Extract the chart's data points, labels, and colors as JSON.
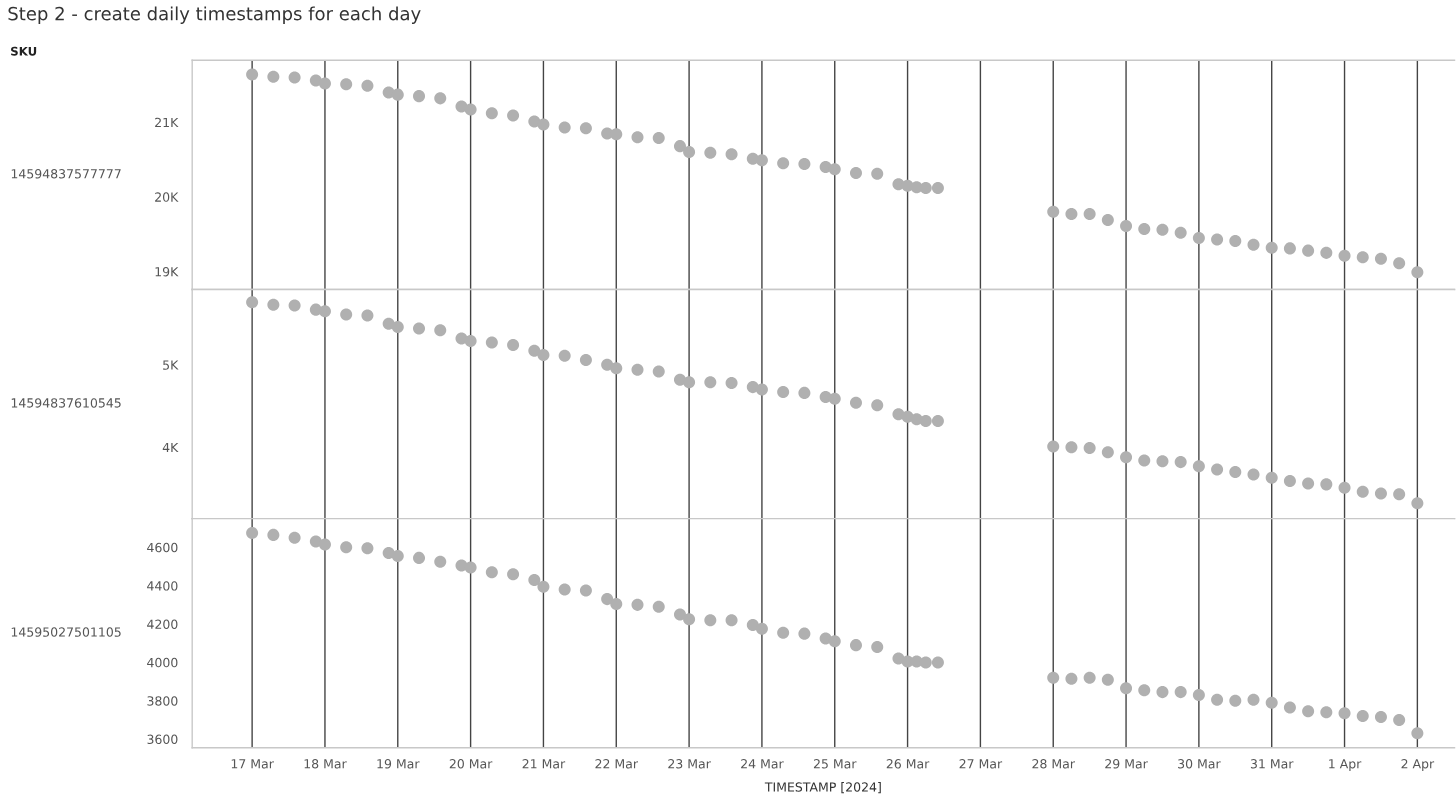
{
  "chart_data": [
    {
      "type": "scatter",
      "title": "Step 2 - create daily timestamps for each day",
      "annotations": [
        "SKU"
      ],
      "ylabel": "14594837577777",
      "marker": "circle",
      "grid": "x",
      "tick_labels": "y",
      "x": [
        "2024-03-17T00:00",
        "2024-03-17T07:00",
        "2024-03-17T14:00",
        "2024-03-17T21:00",
        "2024-03-18T00:00",
        "2024-03-18T07:00",
        "2024-03-18T14:00",
        "2024-03-18T21:00",
        "2024-03-19T00:00",
        "2024-03-19T07:00",
        "2024-03-19T14:00",
        "2024-03-19T21:00",
        "2024-03-20T00:00",
        "2024-03-20T07:00",
        "2024-03-20T14:00",
        "2024-03-20T21:00",
        "2024-03-21T00:00",
        "2024-03-21T07:00",
        "2024-03-21T14:00",
        "2024-03-21T21:00",
        "2024-03-22T00:00",
        "2024-03-22T07:00",
        "2024-03-22T14:00",
        "2024-03-22T21:00",
        "2024-03-23T00:00",
        "2024-03-23T07:00",
        "2024-03-23T14:00",
        "2024-03-23T21:00",
        "2024-03-24T00:00",
        "2024-03-24T07:00",
        "2024-03-24T14:00",
        "2024-03-24T21:00",
        "2024-03-25T00:00",
        "2024-03-25T07:00",
        "2024-03-25T14:00",
        "2024-03-25T21:00",
        "2024-03-26T00:00",
        "2024-03-26T03:00",
        "2024-03-26T06:00",
        "2024-03-26T10:00",
        "2024-03-28T00:00",
        "2024-03-28T06:00",
        "2024-03-28T12:00",
        "2024-03-28T18:00",
        "2024-03-29T00:00",
        "2024-03-29T06:00",
        "2024-03-29T12:00",
        "2024-03-29T18:00",
        "2024-03-30T00:00",
        "2024-03-30T06:00",
        "2024-03-30T12:00",
        "2024-03-30T18:00",
        "2024-03-31T00:00",
        "2024-03-31T06:00",
        "2024-03-31T12:00",
        "2024-03-31T18:00",
        "2024-04-01T00:00",
        "2024-04-01T06:00",
        "2024-04-01T12:00",
        "2024-04-01T18:00",
        "2024-04-02T00:00"
      ],
      "series": [
        {
          "color": "#b0b0b0",
          "values": [
            21640,
            21610,
            21600,
            21560,
            21520,
            21510,
            21490,
            21400,
            21370,
            21350,
            21320,
            21210,
            21170,
            21120,
            21090,
            21010,
            20970,
            20930,
            20920,
            20850,
            20840,
            20800,
            20790,
            20680,
            20600,
            20590,
            20570,
            20510,
            20490,
            20450,
            20440,
            20400,
            20370,
            20320,
            20310,
            20170,
            20150,
            20130,
            20120,
            20120,
            19800,
            19770,
            19770,
            19690,
            19610,
            19570,
            19560,
            19520,
            19450,
            19430,
            19410,
            19360,
            19320,
            19310,
            19280,
            19250,
            19210,
            19190,
            19170,
            19110,
            18990
          ]
        }
      ],
      "xlim": [
        "2024-03-16T04:15",
        "2024-04-02T12:15"
      ],
      "xticks": [
        {
          "value": "2024-03-17",
          "label": null
        },
        {
          "value": "2024-03-18",
          "label": null
        },
        {
          "value": "2024-03-19",
          "label": null
        },
        {
          "value": "2024-03-20",
          "label": null
        },
        {
          "value": "2024-03-21",
          "label": null
        },
        {
          "value": "2024-03-22",
          "label": null
        },
        {
          "value": "2024-03-23",
          "label": null
        },
        {
          "value": "2024-03-24",
          "label": null
        },
        {
          "value": "2024-03-25",
          "label": null
        },
        {
          "value": "2024-03-26",
          "label": null
        },
        {
          "value": "2024-03-27",
          "label": null
        },
        {
          "value": "2024-03-28",
          "label": null
        },
        {
          "value": "2024-03-29",
          "label": null
        },
        {
          "value": "2024-03-30",
          "label": null
        },
        {
          "value": "2024-03-31",
          "label": null
        },
        {
          "value": "2024-04-01",
          "label": null
        },
        {
          "value": "2024-04-02",
          "label": null
        }
      ],
      "ylim": [
        18760,
        21830
      ],
      "yticks": [
        {
          "value": 19000,
          "label": "19K"
        },
        {
          "value": 20000,
          "label": "20K"
        },
        {
          "value": 21000,
          "label": "21K"
        }
      ]
    },
    {
      "type": "scatter",
      "ylabel": "14594837610545",
      "marker": "circle",
      "grid": "x",
      "tick_labels": "y",
      "x": [
        "2024-03-17T00:00",
        "2024-03-17T07:00",
        "2024-03-17T14:00",
        "2024-03-17T21:00",
        "2024-03-18T00:00",
        "2024-03-18T07:00",
        "2024-03-18T14:00",
        "2024-03-18T21:00",
        "2024-03-19T00:00",
        "2024-03-19T07:00",
        "2024-03-19T14:00",
        "2024-03-19T21:00",
        "2024-03-20T00:00",
        "2024-03-20T07:00",
        "2024-03-20T14:00",
        "2024-03-20T21:00",
        "2024-03-21T00:00",
        "2024-03-21T07:00",
        "2024-03-21T14:00",
        "2024-03-21T21:00",
        "2024-03-22T00:00",
        "2024-03-22T07:00",
        "2024-03-22T14:00",
        "2024-03-22T21:00",
        "2024-03-23T00:00",
        "2024-03-23T07:00",
        "2024-03-23T14:00",
        "2024-03-23T21:00",
        "2024-03-24T00:00",
        "2024-03-24T07:00",
        "2024-03-24T14:00",
        "2024-03-24T21:00",
        "2024-03-25T00:00",
        "2024-03-25T07:00",
        "2024-03-25T14:00",
        "2024-03-25T21:00",
        "2024-03-26T00:00",
        "2024-03-26T03:00",
        "2024-03-26T06:00",
        "2024-03-26T10:00",
        "2024-03-28T00:00",
        "2024-03-28T06:00",
        "2024-03-28T12:00",
        "2024-03-28T18:00",
        "2024-03-29T00:00",
        "2024-03-29T06:00",
        "2024-03-29T12:00",
        "2024-03-29T18:00",
        "2024-03-30T00:00",
        "2024-03-30T06:00",
        "2024-03-30T12:00",
        "2024-03-30T18:00",
        "2024-03-31T00:00",
        "2024-03-31T06:00",
        "2024-03-31T12:00",
        "2024-03-31T18:00",
        "2024-04-01T00:00",
        "2024-04-01T06:00",
        "2024-04-01T12:00",
        "2024-04-01T18:00",
        "2024-04-02T00:00"
      ],
      "series": [
        {
          "color": "#b0b0b0",
          "values": [
            5760,
            5730,
            5720,
            5670,
            5650,
            5610,
            5600,
            5500,
            5460,
            5440,
            5420,
            5320,
            5290,
            5270,
            5240,
            5170,
            5120,
            5110,
            5060,
            5000,
            4960,
            4940,
            4920,
            4820,
            4790,
            4790,
            4780,
            4730,
            4700,
            4670,
            4660,
            4610,
            4590,
            4540,
            4510,
            4400,
            4370,
            4340,
            4320,
            4320,
            4010,
            4000,
            3990,
            3940,
            3880,
            3840,
            3830,
            3820,
            3770,
            3730,
            3700,
            3670,
            3630,
            3590,
            3560,
            3550,
            3510,
            3460,
            3440,
            3430,
            3320
          ]
        }
      ],
      "xlim": [
        "2024-03-16T04:15",
        "2024-04-02T12:15"
      ],
      "xticks": [
        {
          "value": "2024-03-17",
          "label": null
        },
        {
          "value": "2024-03-18",
          "label": null
        },
        {
          "value": "2024-03-19",
          "label": null
        },
        {
          "value": "2024-03-20",
          "label": null
        },
        {
          "value": "2024-03-21",
          "label": null
        },
        {
          "value": "2024-03-22",
          "label": null
        },
        {
          "value": "2024-03-23",
          "label": null
        },
        {
          "value": "2024-03-24",
          "label": null
        },
        {
          "value": "2024-03-25",
          "label": null
        },
        {
          "value": "2024-03-26",
          "label": null
        },
        {
          "value": "2024-03-27",
          "label": null
        },
        {
          "value": "2024-03-28",
          "label": null
        },
        {
          "value": "2024-03-29",
          "label": null
        },
        {
          "value": "2024-03-30",
          "label": null
        },
        {
          "value": "2024-03-31",
          "label": null
        },
        {
          "value": "2024-04-01",
          "label": null
        },
        {
          "value": "2024-04-02",
          "label": null
        }
      ],
      "ylim": [
        3135,
        5915
      ],
      "yticks": [
        {
          "value": 4000,
          "label": "4K"
        },
        {
          "value": 5000,
          "label": "5K"
        }
      ]
    },
    {
      "type": "scatter",
      "ylabel": "14595027501105",
      "xlabel": "TIMESTAMP [2024]",
      "marker": "circle",
      "grid": "x",
      "x": [
        "2024-03-17T00:00",
        "2024-03-17T07:00",
        "2024-03-17T14:00",
        "2024-03-17T21:00",
        "2024-03-18T00:00",
        "2024-03-18T07:00",
        "2024-03-18T14:00",
        "2024-03-18T21:00",
        "2024-03-19T00:00",
        "2024-03-19T07:00",
        "2024-03-19T14:00",
        "2024-03-19T21:00",
        "2024-03-20T00:00",
        "2024-03-20T07:00",
        "2024-03-20T14:00",
        "2024-03-20T21:00",
        "2024-03-21T00:00",
        "2024-03-21T07:00",
        "2024-03-21T14:00",
        "2024-03-21T21:00",
        "2024-03-22T00:00",
        "2024-03-22T07:00",
        "2024-03-22T14:00",
        "2024-03-22T21:00",
        "2024-03-23T00:00",
        "2024-03-23T07:00",
        "2024-03-23T14:00",
        "2024-03-23T21:00",
        "2024-03-24T00:00",
        "2024-03-24T07:00",
        "2024-03-24T14:00",
        "2024-03-24T21:00",
        "2024-03-25T00:00",
        "2024-03-25T07:00",
        "2024-03-25T14:00",
        "2024-03-25T21:00",
        "2024-03-26T00:00",
        "2024-03-26T03:00",
        "2024-03-26T06:00",
        "2024-03-26T10:00",
        "2024-03-28T00:00",
        "2024-03-28T06:00",
        "2024-03-28T12:00",
        "2024-03-28T18:00",
        "2024-03-29T00:00",
        "2024-03-29T06:00",
        "2024-03-29T12:00",
        "2024-03-29T18:00",
        "2024-03-30T00:00",
        "2024-03-30T06:00",
        "2024-03-30T12:00",
        "2024-03-30T18:00",
        "2024-03-31T00:00",
        "2024-03-31T06:00",
        "2024-03-31T12:00",
        "2024-03-31T18:00",
        "2024-04-01T00:00",
        "2024-04-01T06:00",
        "2024-04-01T12:00",
        "2024-04-01T18:00",
        "2024-04-02T00:00"
      ],
      "series": [
        {
          "color": "#b0b0b0",
          "values": [
            4675,
            4665,
            4650,
            4630,
            4615,
            4600,
            4595,
            4570,
            4555,
            4545,
            4525,
            4505,
            4495,
            4470,
            4460,
            4430,
            4395,
            4380,
            4375,
            4330,
            4305,
            4300,
            4290,
            4250,
            4225,
            4220,
            4220,
            4195,
            4175,
            4155,
            4150,
            4125,
            4110,
            4090,
            4080,
            4020,
            4005,
            4005,
            4000,
            4000,
            3920,
            3915,
            3920,
            3910,
            3865,
            3855,
            3845,
            3845,
            3830,
            3805,
            3800,
            3805,
            3790,
            3765,
            3745,
            3740,
            3735,
            3720,
            3715,
            3700,
            3630
          ]
        }
      ],
      "xlim": [
        "2024-03-16T04:15",
        "2024-04-02T12:15"
      ],
      "xticks": [
        {
          "value": "2024-03-17",
          "label": "17 Mar"
        },
        {
          "value": "2024-03-18",
          "label": "18 Mar"
        },
        {
          "value": "2024-03-19",
          "label": "19 Mar"
        },
        {
          "value": "2024-03-20",
          "label": "20 Mar"
        },
        {
          "value": "2024-03-21",
          "label": "21 Mar"
        },
        {
          "value": "2024-03-22",
          "label": "22 Mar"
        },
        {
          "value": "2024-03-23",
          "label": "23 Mar"
        },
        {
          "value": "2024-03-24",
          "label": "24 Mar"
        },
        {
          "value": "2024-03-25",
          "label": "25 Mar"
        },
        {
          "value": "2024-03-26",
          "label": "26 Mar"
        },
        {
          "value": "2024-03-27",
          "label": "27 Mar"
        },
        {
          "value": "2024-03-28",
          "label": "28 Mar"
        },
        {
          "value": "2024-03-29",
          "label": "29 Mar"
        },
        {
          "value": "2024-03-30",
          "label": "30 Mar"
        },
        {
          "value": "2024-03-31",
          "label": "31 Mar"
        },
        {
          "value": "2024-04-01",
          "label": "1 Apr"
        },
        {
          "value": "2024-04-02",
          "label": "2 Apr"
        }
      ],
      "ylim": [
        3555,
        4750
      ],
      "yticks": [
        3600,
        3800,
        4000,
        4200,
        4400,
        4600
      ]
    }
  ]
}
